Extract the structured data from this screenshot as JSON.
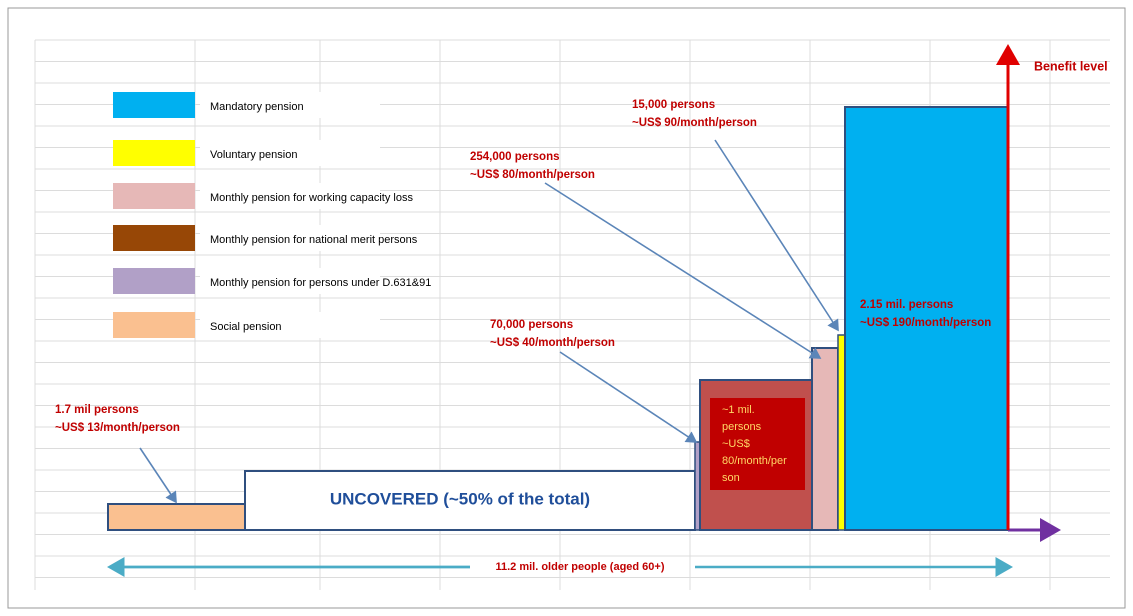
{
  "legend": [
    {
      "label": "Mandatory pension",
      "color": "#00b0f0"
    },
    {
      "label": "Voluntary pension",
      "color": "#ffff00"
    },
    {
      "label": "Monthly pension for working capacity loss",
      "color": "#e6b8b7"
    },
    {
      "label": "Monthly pension for national merit persons",
      "color": "#974706"
    },
    {
      "label": "Monthly pension for persons under D.631&91",
      "color": "#b1a0c7"
    },
    {
      "label": "Social pension",
      "color": "#fac090"
    }
  ],
  "axis_label": "Benefit level",
  "uncovered": "UNCOVERED (~50% of the total)",
  "total": "11.2 mil. older people (aged 60+)",
  "callouts": [
    {
      "persons": "1.7 mil persons",
      "benefit": "~US$ 13/month/person"
    },
    {
      "persons": "70,000 persons",
      "benefit": "~US$ 40/month/person"
    },
    {
      "persons": "254,000 persons",
      "benefit": "~US$ 80/month/person"
    },
    {
      "persons": "15,000 persons",
      "benefit": "~US$ 90/month/person"
    },
    {
      "persons": "2.15 mil. persons",
      "benefit": "~US$ 190/month/person"
    }
  ],
  "merit_box": [
    "~1 mil.",
    "persons",
    "~US$",
    "80/month/per",
    "son"
  ]
}
